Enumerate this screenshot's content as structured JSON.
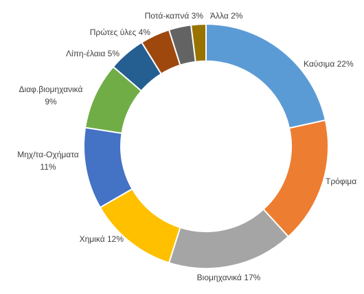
{
  "chart_data": {
    "type": "pie",
    "variant": "donut",
    "title": "",
    "legend": "none",
    "slices": [
      {
        "label": "Καύσιμα",
        "value": 22,
        "display": "Καύσιμα 22%",
        "color": "#5B9BD5"
      },
      {
        "label": "Τρόφιμα",
        "value": 17,
        "display": "Τρόφιμα",
        "color": "#ED7D31"
      },
      {
        "label": "Βιομηχανικά",
        "value": 17,
        "display": "Βιομηχανικά 17%",
        "color": "#A5A5A5"
      },
      {
        "label": "Χημικά",
        "value": 12,
        "display": "Χημικά 12%",
        "color": "#FFC000"
      },
      {
        "label": "Μηχ/τα-Οχήματα",
        "value": 11,
        "display": [
          "Μηχ/τα-Οχήματα",
          "11%"
        ],
        "color": "#4472C4"
      },
      {
        "label": "Διαφ.βιομηχανικά",
        "value": 9,
        "display": [
          "Διαφ.βιομηχανικά",
          "9%"
        ],
        "color": "#70AD47"
      },
      {
        "label": "Λίπη-έλαια",
        "value": 5,
        "display": "Λίπη-έλαια 5%",
        "color": "#255E91"
      },
      {
        "label": "Πρώτες ύλες",
        "value": 4,
        "display": "Πρώτες ύλες 4%",
        "color": "#9E480E"
      },
      {
        "label": "Ποτά-καπνά",
        "value": 3,
        "display": "Ποτά-καπνά 3%",
        "color": "#636363"
      },
      {
        "label": "Άλλα",
        "value": 2,
        "display": "Άλλα 2%",
        "color": "#997300"
      }
    ]
  }
}
